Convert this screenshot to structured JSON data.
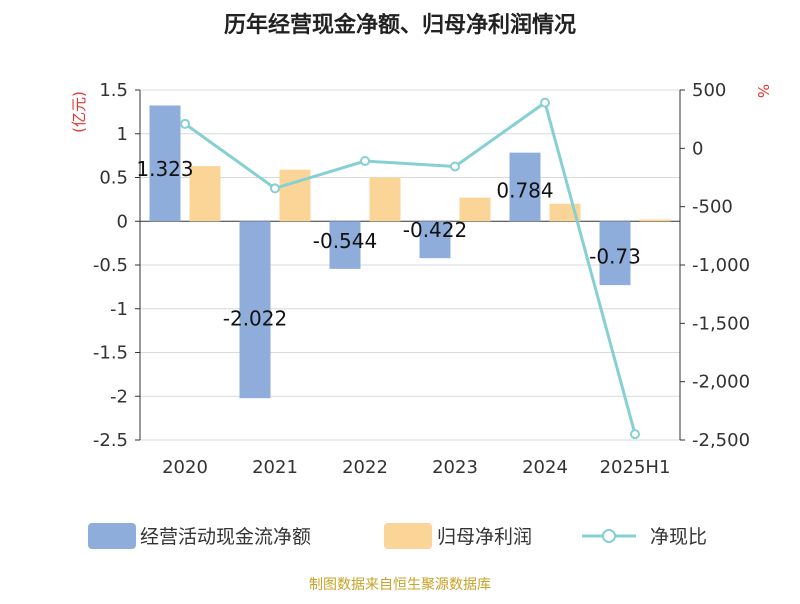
{
  "chart_data": {
    "type": "bar",
    "title": "历年经营现金净额、归母净利润情况",
    "categories": [
      "2020",
      "2021",
      "2022",
      "2023",
      "2024",
      "2025H1"
    ],
    "series": [
      {
        "name": "经营活动现金流净额",
        "kind": "bar",
        "axis": "left",
        "color": "#8EADDB",
        "values": [
          1.323,
          -2.022,
          -0.544,
          -0.422,
          0.784,
          -0.73
        ],
        "data_labels": [
          "1.323",
          "-2.022",
          "-0.544",
          "-0.422",
          "0.784",
          "-0.73"
        ]
      },
      {
        "name": "归母净利润",
        "kind": "bar",
        "axis": "left",
        "color": "#FBD597",
        "values": [
          0.63,
          0.59,
          0.5,
          0.27,
          0.2,
          0.02
        ]
      },
      {
        "name": "净现比",
        "kind": "line",
        "axis": "right",
        "color": "#86D0D3",
        "values": [
          210,
          -343,
          -109,
          -156,
          392,
          -2450
        ]
      }
    ],
    "left_axis": {
      "label": "(亿元)",
      "label_color": "#E8312F",
      "min": -2.5,
      "max": 1.5,
      "ticks": [
        1.5,
        1,
        0.5,
        0,
        -0.5,
        -1,
        -1.5,
        -2,
        -2.5
      ],
      "tick_labels": [
        "1.5",
        "1",
        "0.5",
        "0",
        "-0.5",
        "-1",
        "-1.5",
        "-2",
        "-2.5"
      ]
    },
    "right_axis": {
      "label": "%",
      "label_color": "#E8312F",
      "min": -2500,
      "max": 500,
      "ticks": [
        500,
        0,
        -500,
        -1000,
        -1500,
        -2000,
        -2500
      ],
      "tick_labels": [
        "500",
        "0",
        "-500",
        "-1,000",
        "-1,500",
        "-2,000",
        "-2,500"
      ]
    },
    "grid": "horizontal",
    "legend_position": "bottom"
  },
  "legend": [
    {
      "label": "经营活动现金流净额",
      "color": "#8EADDB",
      "kind": "bar"
    },
    {
      "label": "归母净利润",
      "color": "#FBD597",
      "kind": "bar"
    },
    {
      "label": "净现比",
      "color": "#86D0D3",
      "kind": "line"
    }
  ],
  "source_note": "制图数据来自恒生聚源数据库",
  "colors": {
    "title": "#222222",
    "axis_text": "#333333",
    "grid": "#D9D9D9",
    "axis_line": "#333333",
    "source": "#C9A227"
  }
}
